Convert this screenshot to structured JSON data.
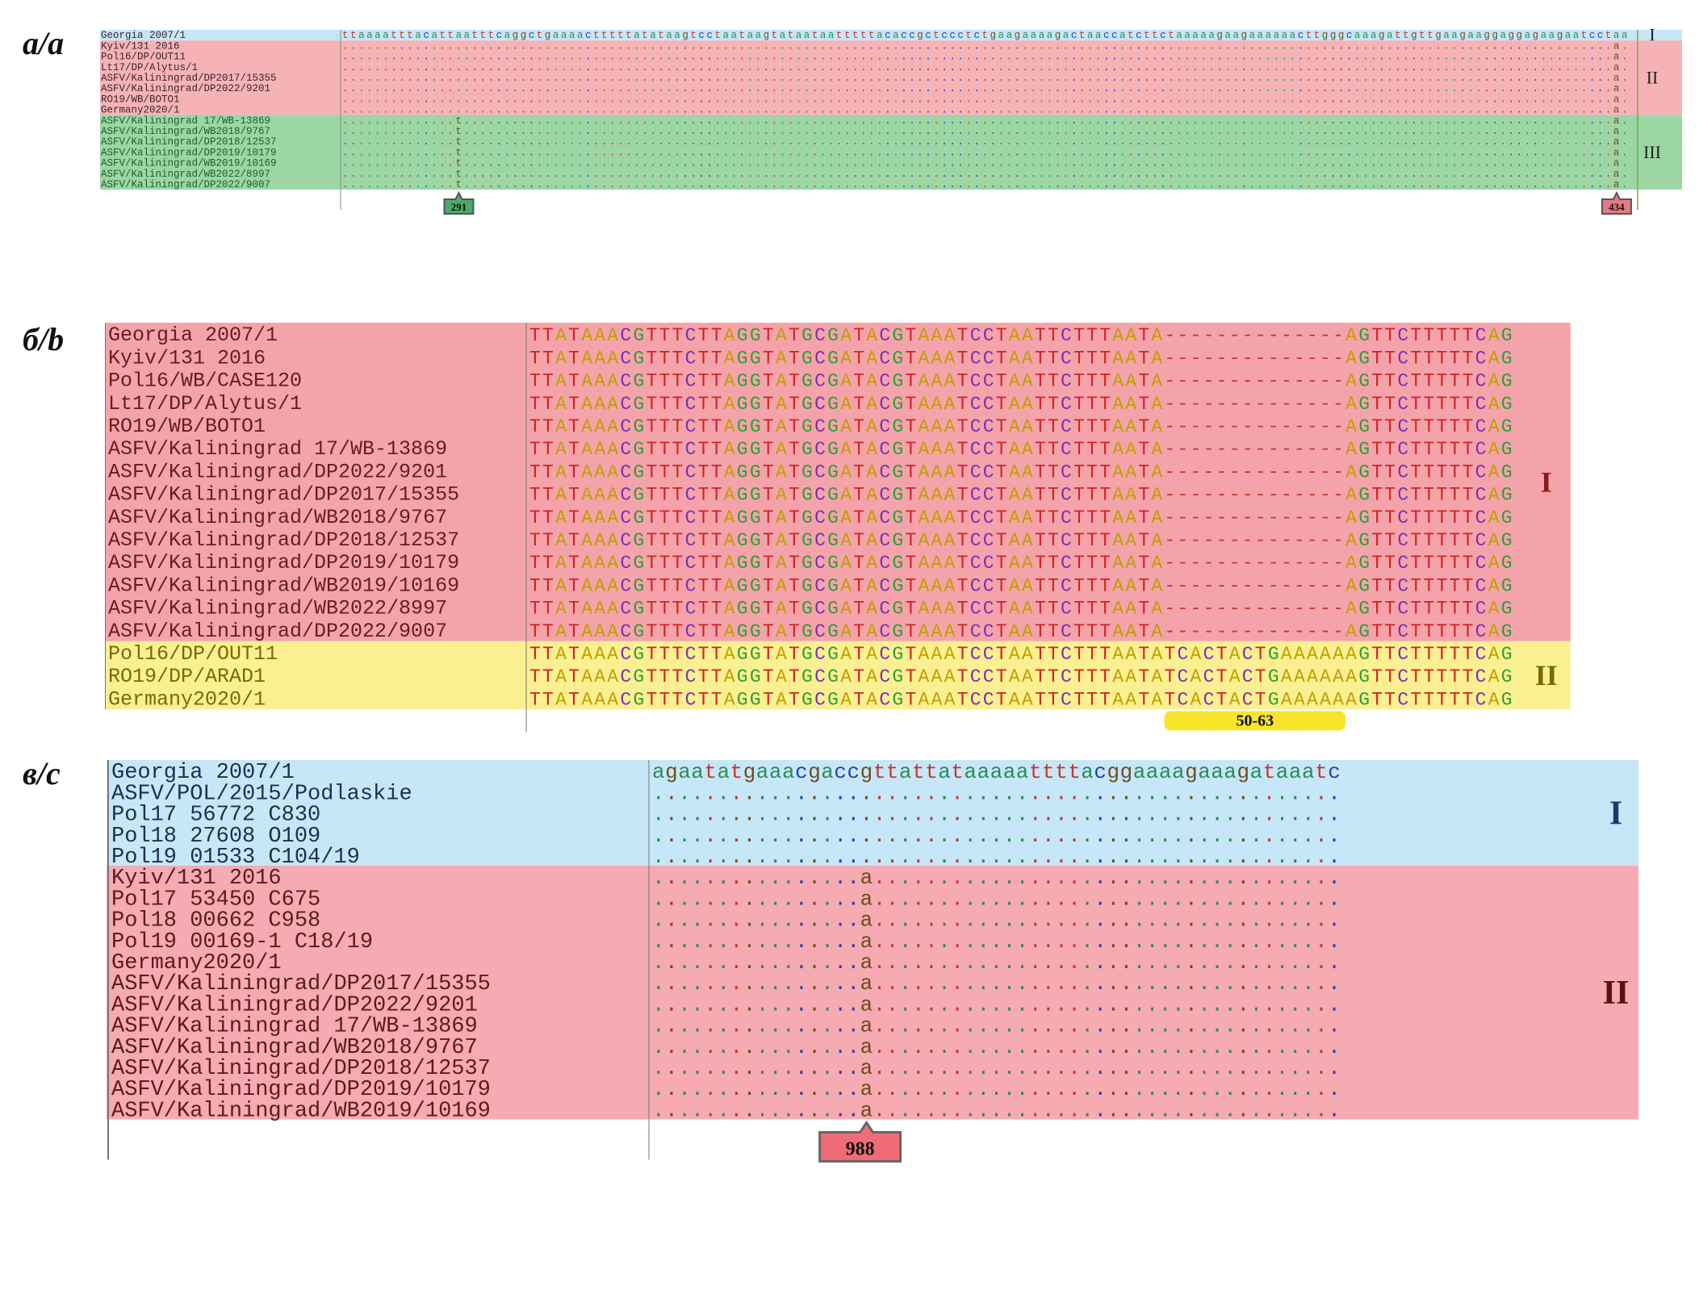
{
  "panels": [
    {
      "id": "a",
      "label": "а/a",
      "sequence_header": "ttaaaatttacattaatttcaggctgaaaactttttatataagtcctaataagtataataatttttacaccgctccctctgaagaaaagactaaccatcttctaaaaagaagaaaaaacttgggcaaagattgttgaagaaggaggagaagaatcctaa",
      "groups": [
        {
          "name": "I",
          "color": "#c6e6f7",
          "rows": [
            "Georgia 2007/1"
          ]
        },
        {
          "name": "II",
          "color": "#f6b3b6",
          "rows": [
            "Kyiv/131 2016",
            "Pol16/DP/OUT11",
            "Lt17/DP/Alytus/1",
            "ASFV/Kaliningrad/DP2017/15355",
            "ASFV/Kaliningrad/DP2022/9201",
            "RO19/WB/BOTO1",
            "Germany2020/1"
          ]
        },
        {
          "name": "III",
          "color": "#9bd6a4",
          "rows": [
            "ASFV/Kaliningrad 17/WB-13869",
            "ASFV/Kaliningrad/WB2018/9767",
            "ASFV/Kaliningrad/DP2018/12537",
            "ASFV/Kaliningrad/DP2019/10179",
            "ASFV/Kaliningrad/WB2019/10169",
            "ASFV/Kaliningrad/WB2022/8997",
            "ASFV/Kaliningrad/DP2022/9007"
          ]
        }
      ],
      "markers": [
        {
          "label": "291",
          "color": "#4fa866",
          "variant": "t"
        },
        {
          "label": "434",
          "color": "#e67a82",
          "variant": "a"
        }
      ]
    },
    {
      "id": "b",
      "label": "б/b",
      "seq_left": "TTATAAACGTTTCTTAGGTATGCGATACGTAAATCCTAATTCTTTAATA",
      "seq_gap": "--------------",
      "seq_insert": "TCACTACTGAAAAA",
      "seq_right": "AGTTCTTTTTCAG",
      "groups": [
        {
          "name": "I",
          "color": "#f5a3ab",
          "rows": [
            "Georgia 2007/1",
            "Kyiv/131 2016",
            "Pol16/WB/CASE120",
            "Lt17/DP/Alytus/1",
            "RO19/WB/BOTO1",
            "ASFV/Kaliningrad 17/WB-13869",
            "ASFV/Kaliningrad/DP2022/9201",
            "ASFV/Kaliningrad/DP2017/15355",
            "ASFV/Kaliningrad/WB2018/9767",
            "ASFV/Kaliningrad/DP2018/12537",
            "ASFV/Kaliningrad/DP2019/10179",
            "ASFV/Kaliningrad/WB2019/10169",
            "ASFV/Kaliningrad/WB2022/8997",
            "ASFV/Kaliningrad/DP2022/9007"
          ]
        },
        {
          "name": "II",
          "color": "#fbf091",
          "rows": [
            "Pol16/DP/OUT11",
            "RO19/DP/ARAD1",
            "Germany2020/1"
          ]
        }
      ],
      "marker": {
        "label": "50-63",
        "color": "#f7e52c"
      }
    },
    {
      "id": "c",
      "label": "в/c",
      "sequence_header": "agaatatgaaacgaccgttattataaaaattttacggaaaagaaagataaatc",
      "groups": [
        {
          "name": "I",
          "color": "#c6e7f8",
          "rows": [
            "Georgia 2007/1",
            "ASFV/POL/2015/Podlaskie",
            "Pol17 56772 C830",
            "Pol18 27608 O109",
            "Pol19 01533 C104/19"
          ]
        },
        {
          "name": "II",
          "color": "#f6aab1",
          "rows": [
            "Kyiv/131 2016",
            "Pol17 53450 C675",
            "Pol18 00662 C958",
            "Pol19 00169-1 C18/19",
            "Germany2020/1",
            "ASFV/Kaliningrad/DP2017/15355",
            "ASFV/Kaliningrad/DP2022/9201",
            "ASFV/Kaliningrad 17/WB-13869",
            "ASFV/Kaliningrad/WB2018/9767",
            "ASFV/Kaliningrad/DP2018/12537",
            "ASFV/Kaliningrad/DP2019/10179",
            "ASFV/Kaliningrad/WB2019/10169"
          ]
        }
      ],
      "marker": {
        "label": "988",
        "color": "#ef6c77",
        "variant": "a"
      }
    }
  ],
  "nucleotide_colors": {
    "a": "#2e8b57",
    "t": "#c0392b",
    "g": "#6b4f1d",
    "c": "#2a3db5"
  },
  "nucleotide_colors_b": {
    "A": "#c0a000",
    "T": "#d42020",
    "G": "#2e9e36",
    "C": "#7d2fb0"
  }
}
